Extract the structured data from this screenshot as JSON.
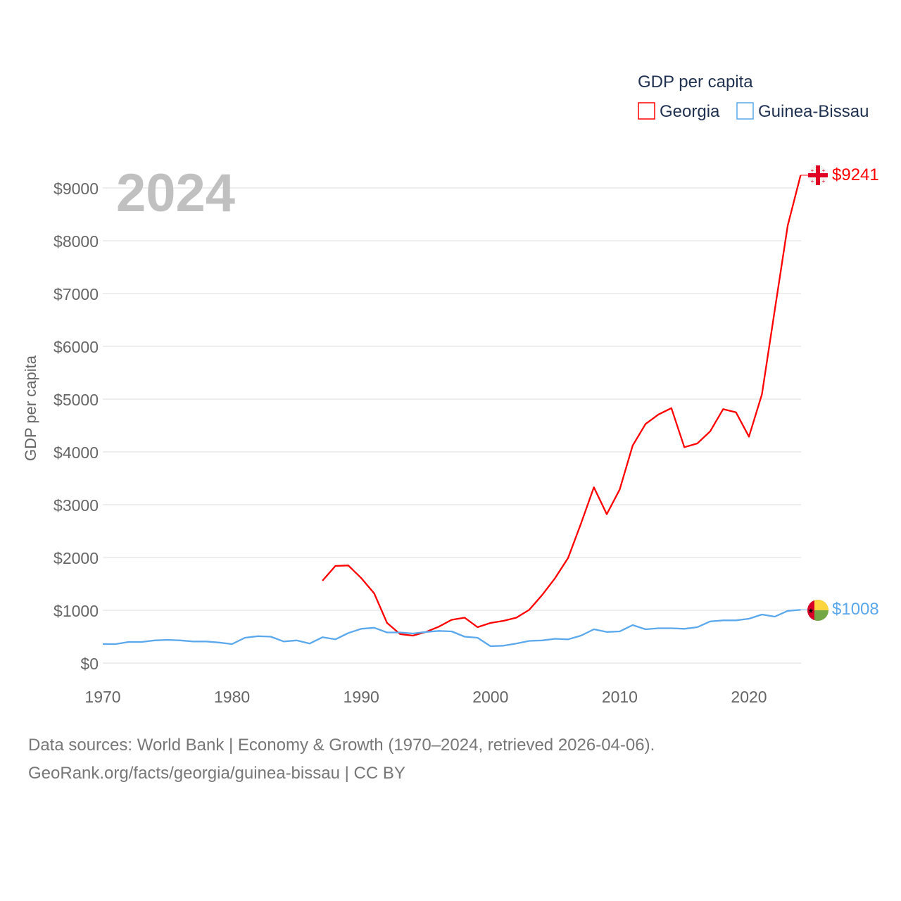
{
  "chart_data": {
    "type": "line",
    "title": "2024",
    "ylabel": "GDP per capita",
    "xlabel": "",
    "legend_title": "GDP per capita",
    "legend_position": "top-right",
    "xlim": [
      1970,
      2024
    ],
    "ylim": [
      0,
      9500
    ],
    "xticks": [
      1970,
      1980,
      1990,
      2000,
      2010,
      2020
    ],
    "xtick_labels": [
      "1970",
      "1980",
      "1990",
      "2000",
      "2010",
      "2020"
    ],
    "yticks": [
      0,
      1000,
      2000,
      3000,
      4000,
      5000,
      6000,
      7000,
      8000,
      9000
    ],
    "ytick_labels": [
      "$0",
      "$1000",
      "$2000",
      "$3000",
      "$4000",
      "$5000",
      "$6000",
      "$7000",
      "$8000",
      "$9000"
    ],
    "grid": true,
    "series": [
      {
        "name": "Georgia",
        "color": "#ff0000",
        "end_label": "$9241",
        "start_year": 1987,
        "values": [
          1560,
          1840,
          1850,
          1610,
          1320,
          760,
          550,
          520,
          590,
          690,
          820,
          860,
          680,
          760,
          800,
          860,
          1010,
          1290,
          1610,
          1990,
          2640,
          3330,
          2820,
          3290,
          4120,
          4530,
          4710,
          4830,
          4090,
          4160,
          4390,
          4810,
          4750,
          4290,
          5090,
          6690,
          8290,
          9241
        ]
      },
      {
        "name": "Guinea-Bissau",
        "color": "#5ba8ec",
        "end_label": "$1008",
        "start_year": 1970,
        "values": [
          360,
          360,
          400,
          400,
          430,
          440,
          430,
          410,
          410,
          390,
          360,
          480,
          510,
          500,
          410,
          430,
          370,
          490,
          450,
          570,
          650,
          670,
          580,
          580,
          560,
          590,
          610,
          600,
          500,
          480,
          320,
          330,
          370,
          420,
          430,
          460,
          450,
          520,
          640,
          590,
          600,
          720,
          640,
          660,
          660,
          650,
          680,
          790,
          810,
          810,
          840,
          920,
          880,
          990,
          1008
        ]
      }
    ]
  },
  "footer": {
    "line1": "Data sources: World Bank | Economy & Growth (1970–2024, retrieved 2026-04-06).",
    "line2": "GeoRank.org/facts/georgia/guinea-bissau | CC BY"
  }
}
